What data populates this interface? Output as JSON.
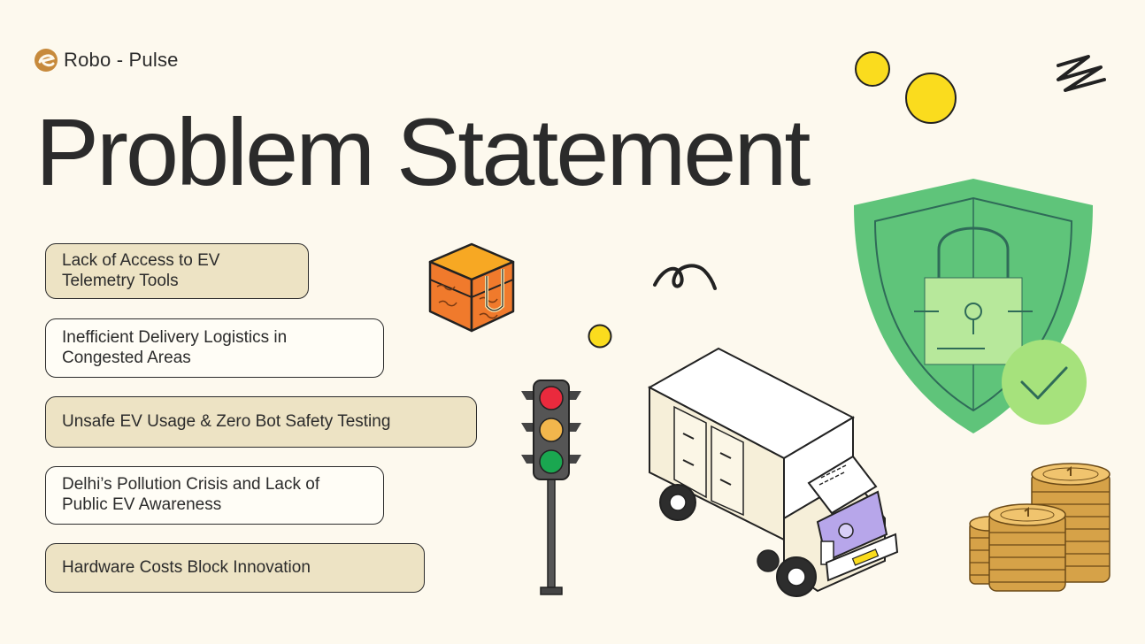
{
  "brand": {
    "name": "Robo - Pulse",
    "logo_icon": "robo-pulse-logo-icon"
  },
  "title": "Problem Statement",
  "problems": [
    {
      "text": "Lack of Access to EV Telemetry Tools"
    },
    {
      "text": "Inefficient Delivery Logistics in Congested Areas"
    },
    {
      "text": "Unsafe EV Usage & Zero Bot Safety Testing"
    },
    {
      "text": "Delhi’s Pollution Crisis and Lack of Public EV Awareness"
    },
    {
      "text": "Hardware Costs Block Innovation"
    }
  ],
  "colors": {
    "background": "#fdf9ee",
    "pill_tan": "#ede3c4",
    "shield_green": "#5fc47a",
    "coin_yellow": "#fadc1e",
    "crate_orange": "#f07a2c",
    "coin_gold": "#d6a248"
  },
  "illustrations": [
    "yellow-dot-icon",
    "scribble-icon",
    "treasure-crate-icon",
    "traffic-light-icon",
    "delivery-truck-icon",
    "security-shield-icon",
    "coin-stack-icon"
  ]
}
